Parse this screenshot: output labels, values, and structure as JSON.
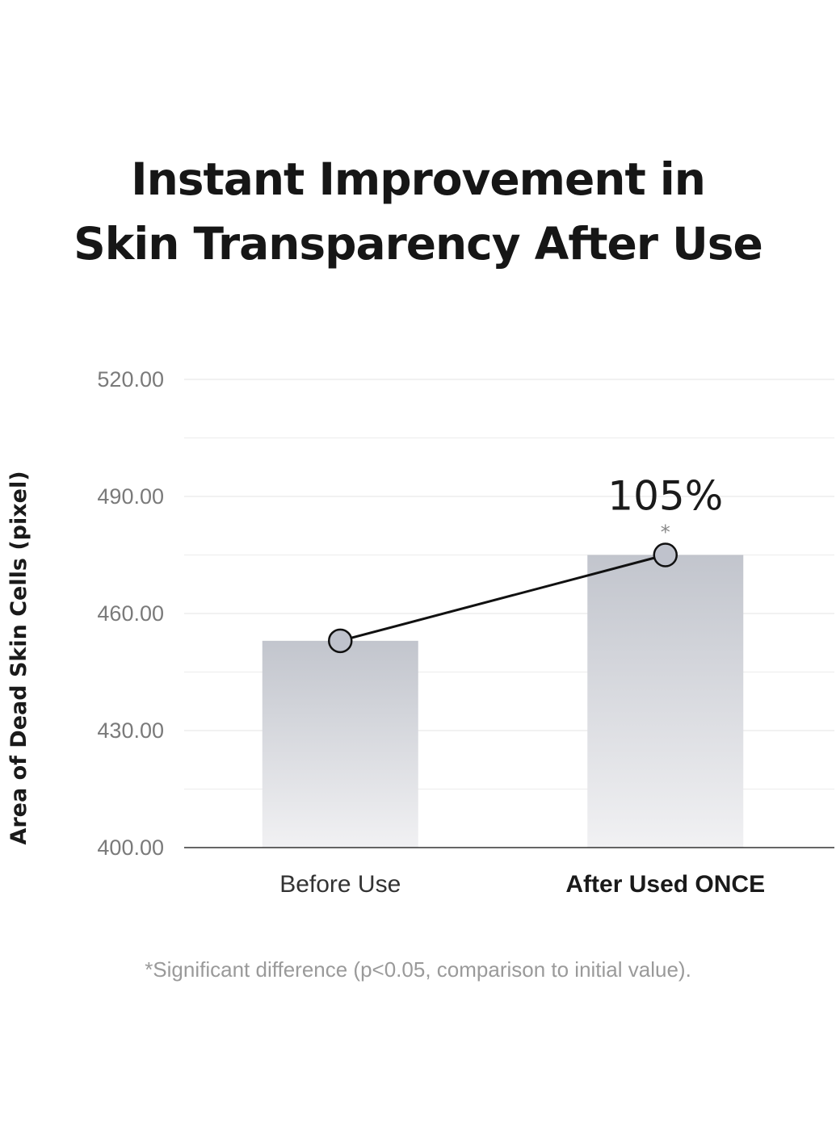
{
  "title_lines": [
    "Instant Improvement in",
    "Skin Transparency After Use"
  ],
  "chart_data": {
    "type": "bar",
    "title": "Instant Improvement in Skin Transparency After Use",
    "ylabel": "Area of Dead Skin Cells (pixel)",
    "xlabel": "",
    "categories": [
      "Before Use",
      "After Used ONCE"
    ],
    "values": [
      453.0,
      475.0
    ],
    "ylim": [
      400,
      520
    ],
    "yticks": [
      "520.00",
      "490.00",
      "460.00",
      "430.00",
      "400.00"
    ],
    "ytick_values": [
      520,
      490,
      460,
      430,
      400
    ],
    "minor_grid_values": [
      505,
      475,
      445,
      415
    ],
    "grid": true,
    "overlay_line": true,
    "annotation": {
      "text": "105%",
      "marker": "*",
      "category": "After Used ONCE"
    },
    "colors": {
      "bar_top": "#c2c5cd",
      "bar_bottom": "#f1f1f3",
      "line": "#111111",
      "marker_fill": "#bfc2cc"
    }
  },
  "footnote": "*Significant difference (p<0.05, comparison to initial value)."
}
